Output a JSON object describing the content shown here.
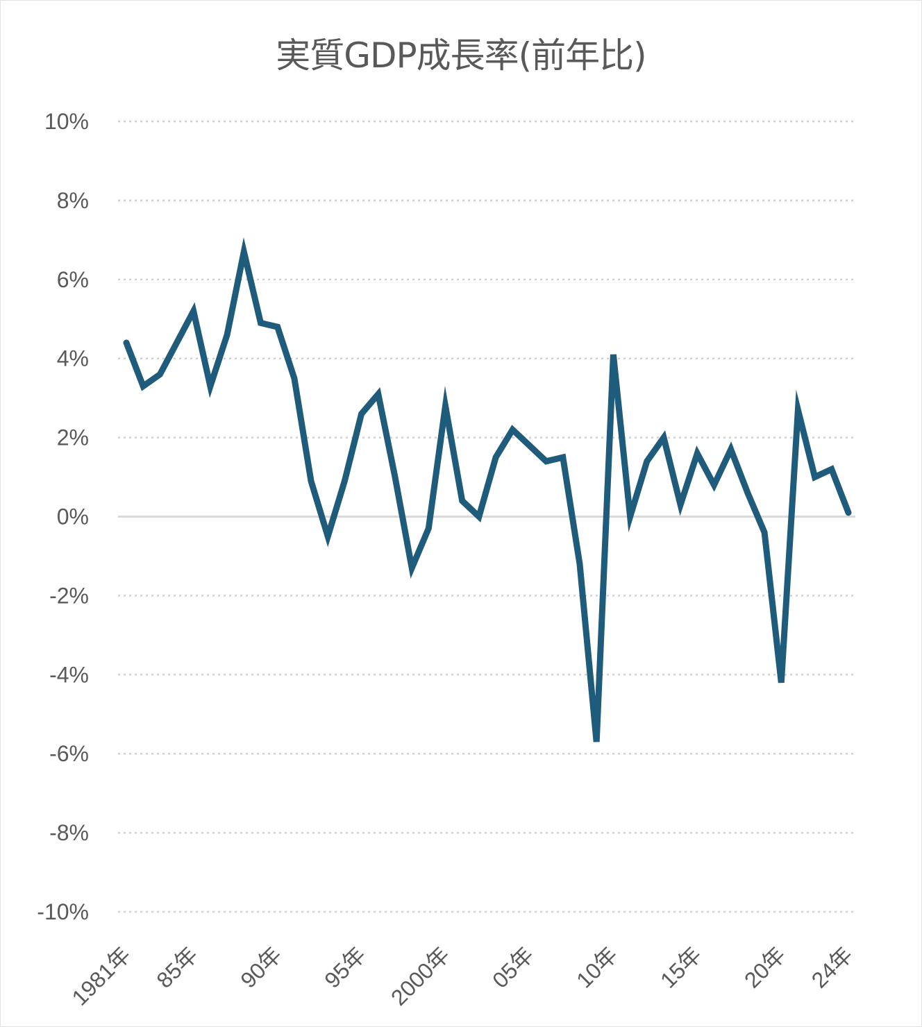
{
  "chart_data": {
    "type": "line",
    "title": "実質GDP成長率(前年比)",
    "xlabel": "",
    "ylabel": "",
    "ylim": [
      -10,
      10
    ],
    "y_ticks": [
      "10%",
      "8%",
      "6%",
      "4%",
      "2%",
      "0%",
      "-2%",
      "-4%",
      "-6%",
      "-8%",
      "-10%"
    ],
    "x_ticks": [
      {
        "year": 1981,
        "label": "1981年"
      },
      {
        "year": 1985,
        "label": "85年"
      },
      {
        "year": 1990,
        "label": "90年"
      },
      {
        "year": 1995,
        "label": "95年"
      },
      {
        "year": 2000,
        "label": "2000年"
      },
      {
        "year": 2005,
        "label": "05年"
      },
      {
        "year": 2010,
        "label": "10年"
      },
      {
        "year": 2015,
        "label": "15年"
      },
      {
        "year": 2020,
        "label": "20年"
      },
      {
        "year": 2024,
        "label": "24年"
      }
    ],
    "grid": true,
    "line_color": "#1f5b7a",
    "x": [
      1981,
      1982,
      1983,
      1984,
      1985,
      1986,
      1987,
      1988,
      1989,
      1990,
      1991,
      1992,
      1993,
      1994,
      1995,
      1996,
      1997,
      1998,
      1999,
      2000,
      2001,
      2002,
      2003,
      2004,
      2005,
      2006,
      2007,
      2008,
      2009,
      2010,
      2011,
      2012,
      2013,
      2014,
      2015,
      2016,
      2017,
      2018,
      2019,
      2020,
      2021,
      2022,
      2023,
      2024
    ],
    "series": [
      {
        "values": [
          4.4,
          3.3,
          3.6,
          4.4,
          5.2,
          3.3,
          4.6,
          6.7,
          4.9,
          4.8,
          3.5,
          0.9,
          -0.5,
          0.9,
          2.6,
          3.1,
          1.0,
          -1.3,
          -0.3,
          2.8,
          0.4,
          0.0,
          1.5,
          2.2,
          1.8,
          1.4,
          1.5,
          -1.2,
          -5.7,
          4.1,
          0.0,
          1.4,
          2.0,
          0.3,
          1.6,
          0.8,
          1.7,
          0.6,
          -0.4,
          -4.2,
          2.7,
          1.0,
          1.2,
          0.1
        ]
      }
    ]
  }
}
